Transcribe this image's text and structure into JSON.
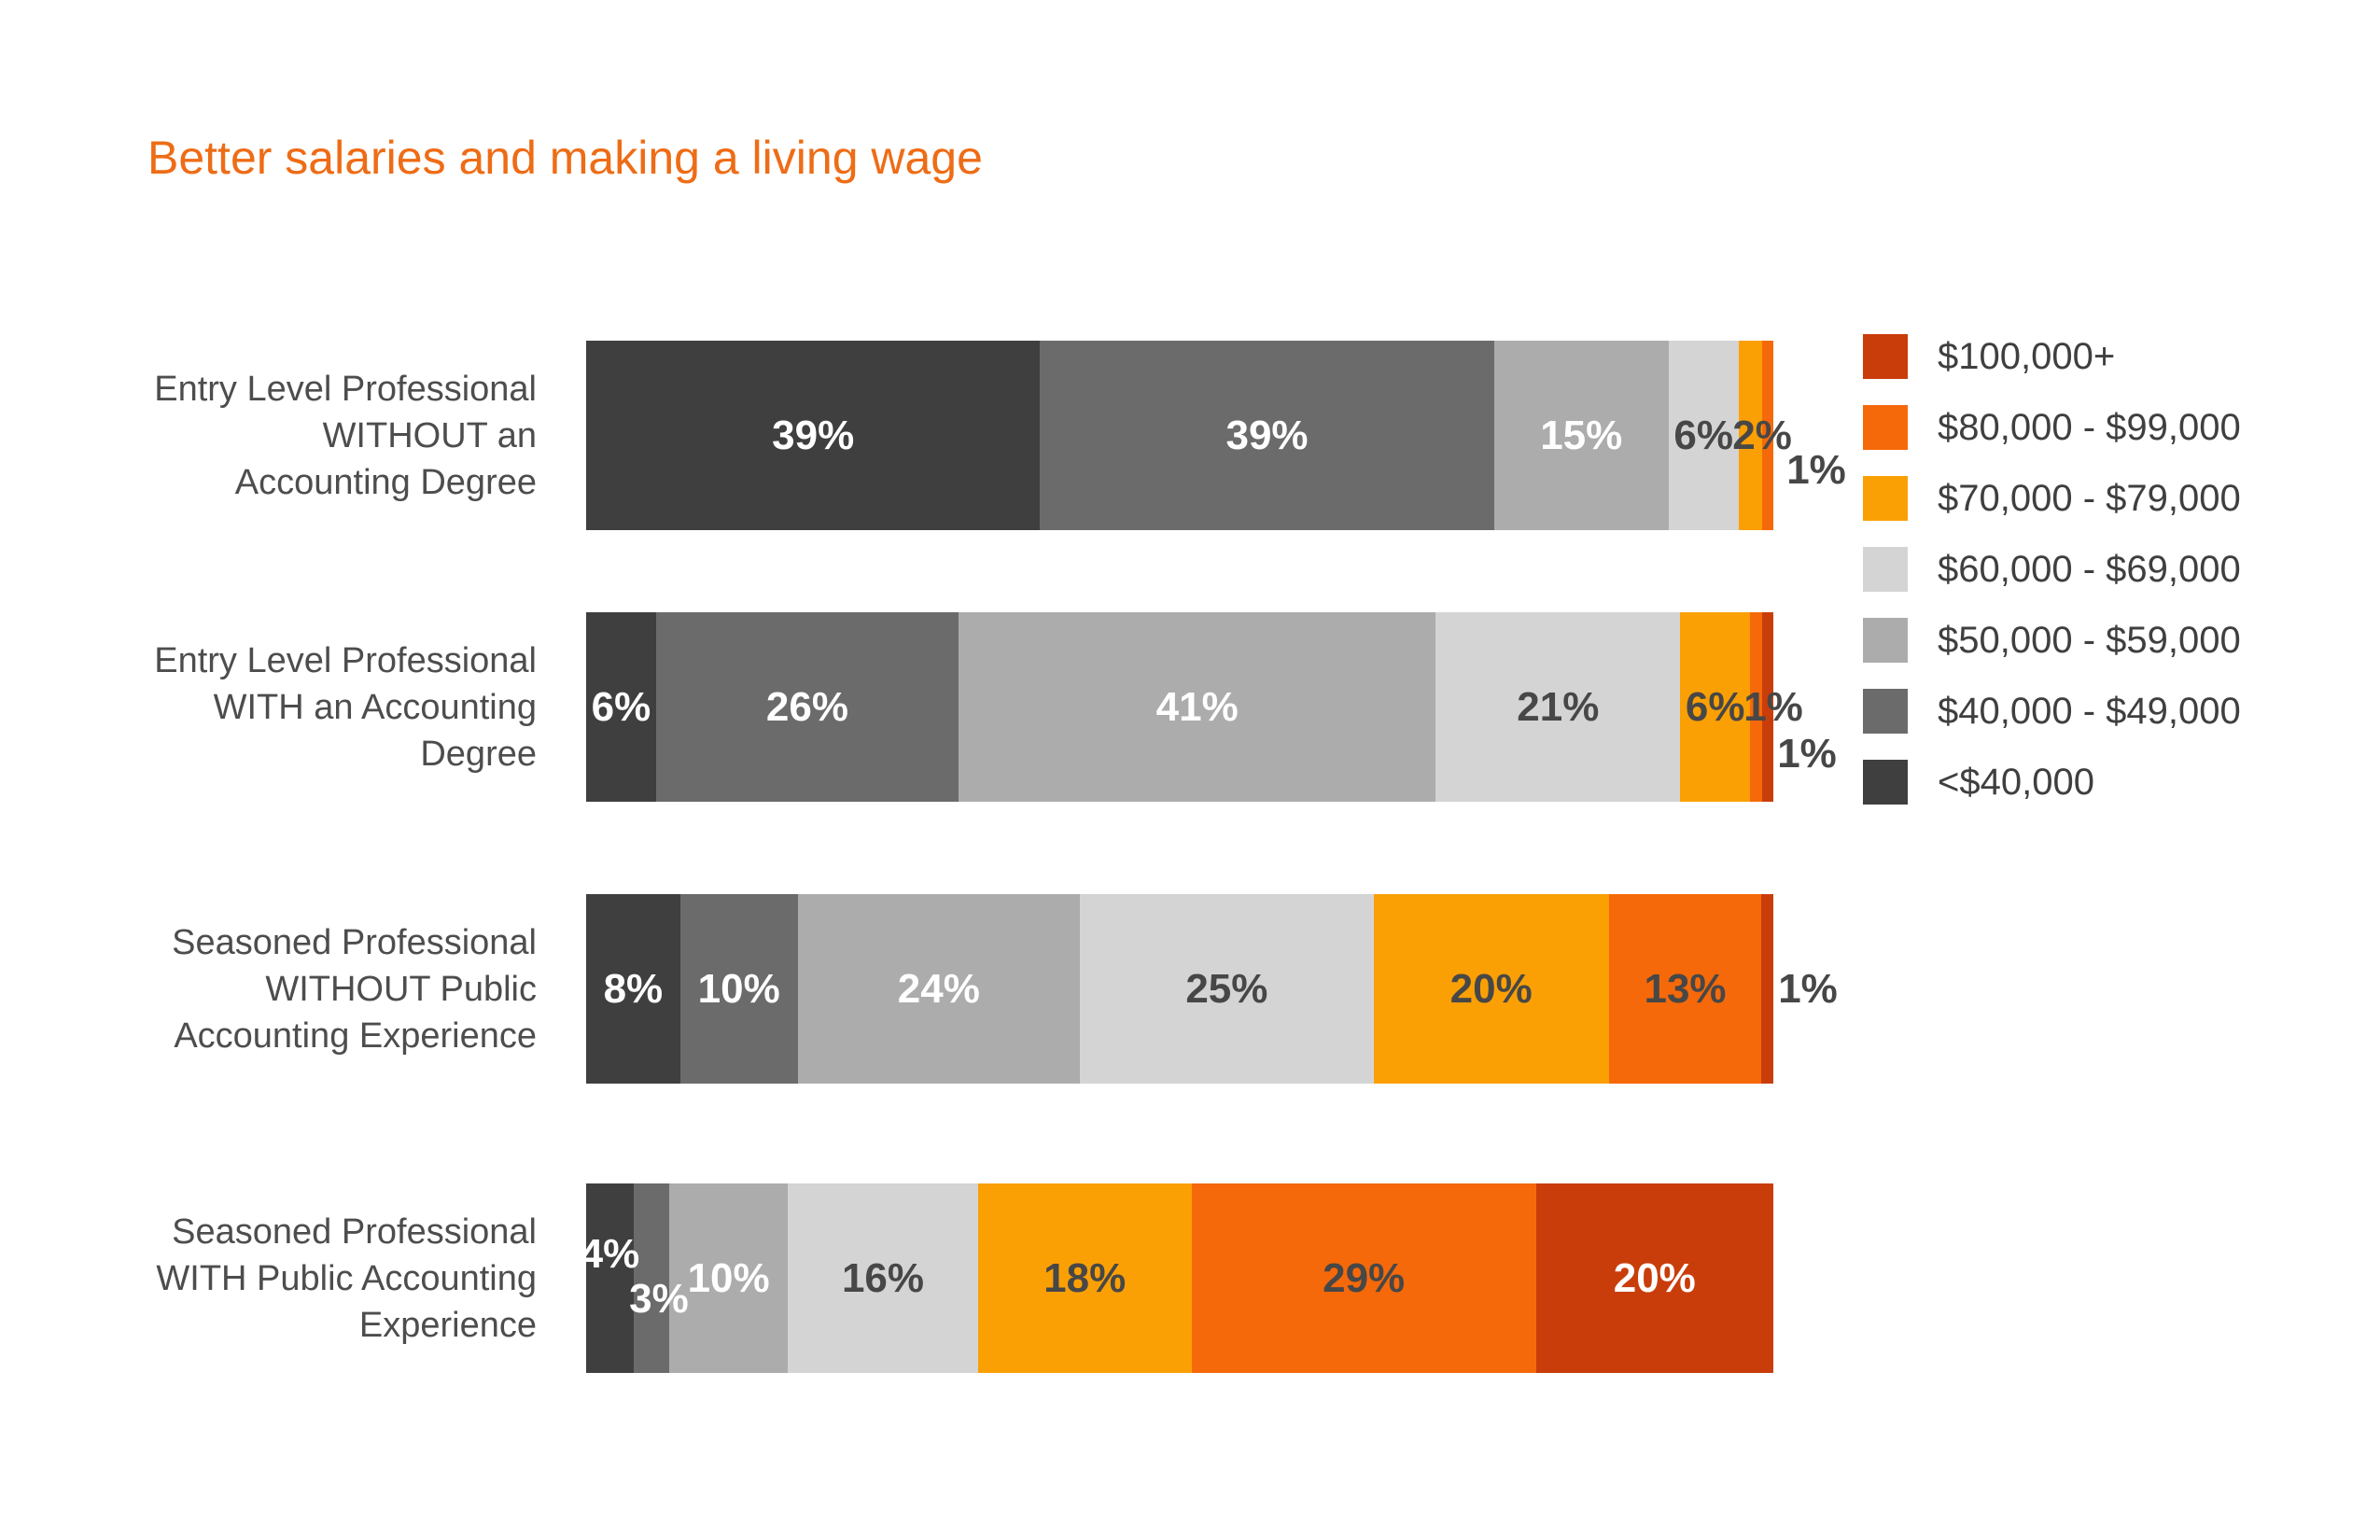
{
  "title": {
    "text": "Better salaries and making a living wage",
    "color": "#EE6C16"
  },
  "legend": [
    {
      "id": "100k-plus",
      "label": "$100,000+",
      "color": "#C93D0A"
    },
    {
      "id": "80-99k",
      "label": "$80,000 - $99,000",
      "color": "#F5690A"
    },
    {
      "id": "70-79k",
      "label": "$70,000 - $79,000",
      "color": "#FAA005"
    },
    {
      "id": "60-69k",
      "label": "$60,000 - $69,000",
      "color": "#D4D4D4"
    },
    {
      "id": "50-59k",
      "label": "$50,000 - $59,000",
      "color": "#ACACAC"
    },
    {
      "id": "40-49k",
      "label": "$40,000 - $49,000",
      "color": "#6B6B6B"
    },
    {
      "id": "under-40k",
      "label": "<$40,000",
      "color": "#3F3F3F"
    }
  ],
  "text_colors": {
    "dark": "#474747",
    "light": "#FFFFFF",
    "category": "#4D4D4D"
  },
  "chart_data": {
    "type": "bar",
    "stacked": true,
    "orientation": "horizontal",
    "unit": "%",
    "value_suffix": "%",
    "title": "Better salaries and making a living wage",
    "legend_position": "right",
    "grid": false,
    "categories": [
      "Entry Level Professional WITHOUT an Accounting Degree",
      "Entry Level Professional WITH an Accounting Degree",
      "Seasoned Professional WITHOUT Public Accounting Experience",
      "Seasoned Professional WITH Public Accounting Experience"
    ],
    "category_lines": [
      [
        "Entry Level Professional",
        "WITHOUT an",
        "Accounting Degree"
      ],
      [
        "Entry Level Professional",
        "WITH an Accounting",
        "Degree"
      ],
      [
        "Seasoned Professional",
        "WITHOUT Public",
        "Accounting Experience"
      ],
      [
        "Seasoned Professional",
        "WITH Public Accounting",
        "Experience"
      ]
    ],
    "series": [
      {
        "name": "$100,000+",
        "values": [
          0,
          1,
          1,
          20
        ]
      },
      {
        "name": "$80,000 - $99,000",
        "values": [
          1,
          1,
          13,
          29
        ]
      },
      {
        "name": "$70,000 - $79,000",
        "values": [
          2,
          6,
          20,
          18
        ]
      },
      {
        "name": "$60,000 - $69,000",
        "values": [
          6,
          21,
          25,
          16
        ]
      },
      {
        "name": "$50,000 - $59,000",
        "values": [
          15,
          41,
          24,
          10
        ]
      },
      {
        "name": "$40,000 - $49,000",
        "values": [
          39,
          26,
          10,
          3
        ]
      },
      {
        "name": "<$40,000",
        "values": [
          39,
          6,
          8,
          4
        ]
      }
    ]
  }
}
